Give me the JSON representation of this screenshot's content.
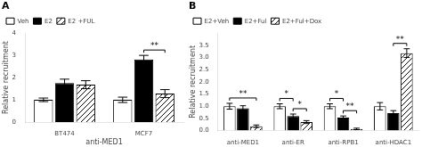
{
  "chart_data": [
    {
      "type": "bar",
      "title": "A",
      "ylabel": "Relative recruitment",
      "xlabel": "anti-MED1",
      "categories": [
        "BT474",
        "MCF7"
      ],
      "series": [
        {
          "name": "Veh",
          "color": "white",
          "values": [
            1.0,
            1.0
          ],
          "errors": [
            0.08,
            0.12
          ]
        },
        {
          "name": "E2",
          "color": "black",
          "values": [
            1.75,
            2.82
          ],
          "errors": [
            0.18,
            0.18
          ]
        },
        {
          "name": "E2 +FUL",
          "color": "white",
          "values": [
            1.68,
            1.28
          ],
          "errors": [
            0.18,
            0.18
          ]
        }
      ],
      "ylim": [
        0,
        4
      ],
      "yticks": [
        0,
        1,
        2,
        3,
        4
      ],
      "grid": false,
      "legend": "upper left",
      "annotations": [
        {
          "text": "**",
          "category": "MCF7",
          "from": "E2",
          "to": "E2 +FUL"
        }
      ]
    },
    {
      "type": "bar",
      "title": "B",
      "ylabel": "Relative recruitment",
      "categories": [
        "anti-MED1",
        "anti-ER",
        "anti-RPB1",
        "anti-HDAC1"
      ],
      "series": [
        {
          "name": "E2+Veh",
          "color": "white",
          "values": [
            1.0,
            1.0,
            1.0,
            1.0
          ],
          "errors": [
            0.12,
            0.1,
            0.1,
            0.15
          ]
        },
        {
          "name": "E2+Ful",
          "color": "black",
          "values": [
            0.92,
            0.6,
            0.53,
            0.72
          ],
          "errors": [
            0.1,
            0.08,
            0.07,
            0.1
          ]
        },
        {
          "name": "E2+Ful+Dox",
          "color": "white",
          "values": [
            0.18,
            0.35,
            0.07,
            3.18
          ],
          "errors": [
            0.05,
            0.06,
            0.03,
            0.18
          ]
        }
      ],
      "ylim": [
        0,
        4
      ],
      "yticks": [
        {
          "value": 0,
          "label": "0.0"
        },
        0.5,
        {
          "value": 1.0,
          "label": "1.0"
        },
        1.5,
        {
          "value": 2.0,
          "label": "2.0"
        },
        2.5,
        {
          "value": 3.0,
          "label": "3.0"
        },
        3.5
      ],
      "grid": false,
      "legend": "upper left",
      "annotations": [
        {
          "text": "**",
          "category": "anti-MED1",
          "from": "E2+Veh",
          "to": "E2+Ful+Dox"
        },
        {
          "text": "*",
          "category": "anti-ER",
          "from": "E2+Veh",
          "to": "E2+Ful"
        },
        {
          "text": "*",
          "category": "anti-ER",
          "from": "E2+Ful",
          "to": "E2+Ful+Dox"
        },
        {
          "text": "*",
          "category": "anti-RPB1",
          "from": "E2+Veh",
          "to": "E2+Ful"
        },
        {
          "text": "**",
          "category": "anti-RPB1",
          "from": "E2+Ful",
          "to": "E2+Ful+Dox"
        },
        {
          "text": "**",
          "category": "anti-HDAC1",
          "from": "E2+Ful",
          "to": "E2+Ful+Dox"
        }
      ]
    }
  ]
}
